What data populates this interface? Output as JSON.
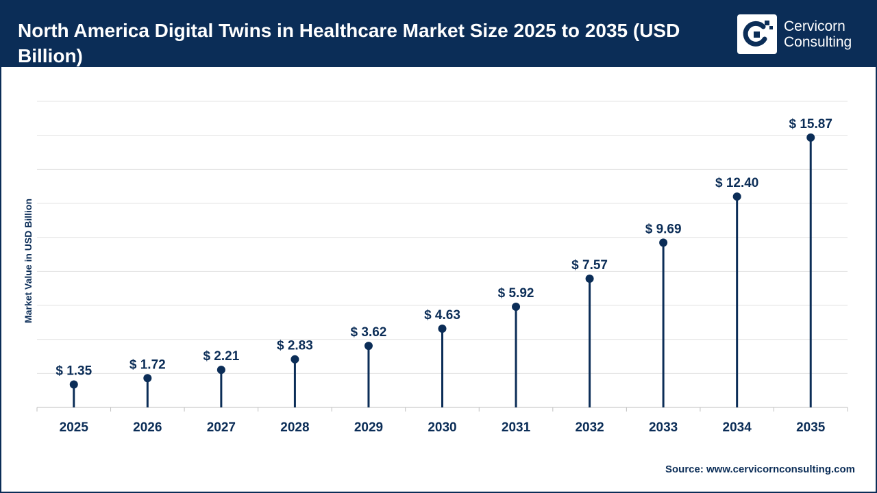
{
  "header": {
    "title": "North America Digital Twins in Healthcare Market Size 2025 to 2035 (USD Billion)",
    "logo_line1": "Cervicorn",
    "logo_line2": "Consulting"
  },
  "source": "Source: www.cervicornconsulting.com",
  "colors": {
    "primary": "#0b2d57",
    "grid": "#e3e3e3",
    "background": "#ffffff"
  },
  "chart_data": {
    "type": "lollipop",
    "title": "North America Digital Twins in Healthcare Market Size 2025 to 2035 (USD Billion)",
    "xlabel": "",
    "ylabel": "Market Value in USD Billion",
    "categories": [
      "2025",
      "2026",
      "2027",
      "2028",
      "2029",
      "2030",
      "2031",
      "2032",
      "2033",
      "2034",
      "2035"
    ],
    "values": [
      1.35,
      1.72,
      2.21,
      2.83,
      3.62,
      4.63,
      5.92,
      7.57,
      9.69,
      12.4,
      15.87
    ],
    "value_labels": [
      "$ 1.35",
      "$ 1.72",
      "$ 2.21",
      "$ 2.83",
      "$ 3.62",
      "$ 4.63",
      "$ 5.92",
      "$ 7.57",
      "$ 9.69",
      "$ 12.40",
      "$ 15.87"
    ],
    "ylim": [
      0,
      18
    ],
    "gridlines": true,
    "legend": "none"
  }
}
